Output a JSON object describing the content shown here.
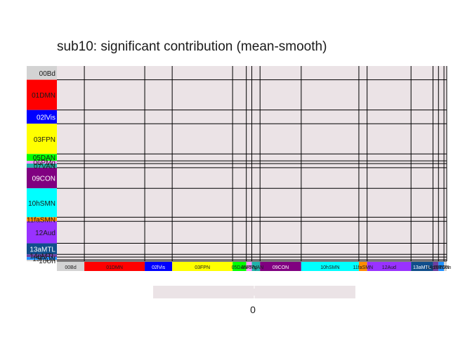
{
  "chart_data": {
    "type": "heatmap",
    "title": "sub10: significant contribution (mean-smooth)",
    "networks": [
      {
        "label": "00Bd",
        "size": 10,
        "color": "#D3D3D3",
        "text_color": "#1a1a1a"
      },
      {
        "label": "01DMN",
        "size": 22,
        "color": "#FF0000",
        "text_color": "#1a1a1a"
      },
      {
        "label": "02lVis",
        "size": 10,
        "color": "#0000FF",
        "text_color": "#ffffff"
      },
      {
        "label": "03FPN",
        "size": 22,
        "color": "#FFFF00",
        "text_color": "#1a1a1a"
      },
      {
        "label": "05DAN",
        "size": 5,
        "color": "#00FF00",
        "text_color": "#1a1a1a"
      },
      {
        "label": "06PMg",
        "size": 2,
        "color": "#FF99FF",
        "text_color": "#1a1a1a"
      },
      {
        "label": "07VAN",
        "size": 3,
        "color": "#20B2AA",
        "text_color": "#1a1a1a"
      },
      {
        "label": "09CON",
        "size": 15,
        "color": "#800080",
        "text_color": "#ffffff"
      },
      {
        "label": "10hSMN",
        "size": 21,
        "color": "#00FFFF",
        "text_color": "#1a1a1a"
      },
      {
        "label": "11faSMN",
        "size": 3,
        "color": "#FF8C00",
        "text_color": "#1a1a1a"
      },
      {
        "label": "12Aud",
        "size": 16,
        "color": "#9932FF",
        "text_color": "#1a1a1a"
      },
      {
        "label": "13aMTL",
        "size": 8,
        "color": "#104E8B",
        "text_color": "#ffffff"
      },
      {
        "label": "14pMTL",
        "size": 2,
        "color": "#6B3FA0",
        "text_color": "#1a1a1a"
      },
      {
        "label": "15PON",
        "size": 2,
        "color": "#1E90FF",
        "text_color": "#1a1a1a"
      },
      {
        "label": "16Un",
        "size": 1,
        "color": "#D3D3D3",
        "text_color": "#1a1a1a"
      }
    ],
    "fill_color": "#EBE3E6",
    "grid_line_color": "#000000",
    "legend": {
      "color": "#EBE3E6",
      "min": 0,
      "max": 0,
      "tick_labels": [
        "0"
      ],
      "placement": "bottom"
    }
  }
}
